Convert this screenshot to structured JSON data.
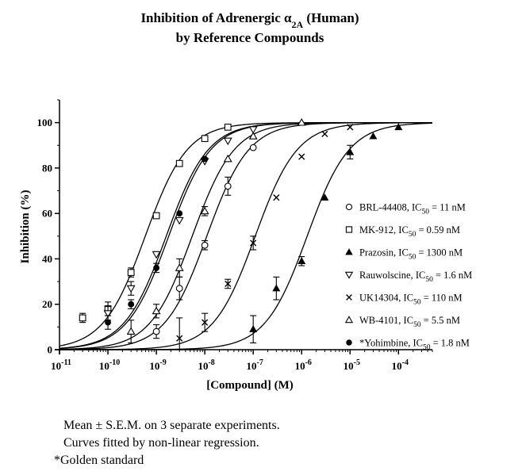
{
  "chart_data": {
    "type": "scatter",
    "title": "Inhibition of Adrenergic α2A (Human)",
    "subtitle": "by Reference Compounds",
    "xlabel": "[Compound] (M)",
    "ylabel": "Inhibition (%)",
    "xscale": "log",
    "xlim": [
      1e-11,
      0.0005
    ],
    "ylim": [
      0,
      110
    ],
    "grid": false,
    "legend_position": "right",
    "x_ticks": [
      "10-11",
      "10-10",
      "10-9",
      "10-8",
      "10-7",
      "10-6",
      "10-5",
      "10-4"
    ],
    "y_ticks": [
      "0",
      "20",
      "40",
      "60",
      "80",
      "100"
    ],
    "series": [
      {
        "name": "BRL-44408, IC50 = 11 nM",
        "legend_prefix": "BRL-44408, IC",
        "legend_sub": "50",
        "legend_suffix": " = 11 nM",
        "marker": "circle",
        "ic50": 1.1e-08,
        "x": [
          1e-09,
          3e-09,
          1e-08,
          3e-08,
          1e-07
        ],
        "y": [
          8,
          27,
          46,
          72,
          89
        ],
        "err": [
          3,
          5,
          2,
          4,
          0
        ]
      },
      {
        "name": "MK-912, IC50 = 0.59 nM",
        "legend_prefix": "MK-912, IC",
        "legend_sub": "50",
        "legend_suffix": " = 0.59 nM",
        "marker": "square",
        "ic50": 5.9e-10,
        "x": [
          3e-11,
          1e-10,
          3e-10,
          1e-09,
          3e-09,
          1e-08,
          3e-08
        ],
        "y": [
          14,
          18,
          34,
          59,
          82,
          93,
          98
        ],
        "err": [
          2,
          3,
          2,
          0,
          0,
          0,
          0
        ]
      },
      {
        "name": "Prazosin, IC50 = 1300 nM",
        "legend_prefix": "Prazosin, IC",
        "legend_sub": "50",
        "legend_suffix": " = 1300 nM",
        "marker": "triangle-up-filled",
        "ic50": 1.3e-06,
        "x": [
          1e-07,
          3e-07,
          1e-06,
          3e-06,
          1e-05,
          3e-05,
          0.0001
        ],
        "y": [
          9,
          27,
          39,
          67,
          87,
          94,
          98
        ],
        "err": [
          6,
          5,
          2,
          0,
          3,
          0,
          0
        ]
      },
      {
        "name": "Rauwolscine, IC50 = 1.6 nM",
        "legend_prefix": "Rauwolscine, IC",
        "legend_sub": "50",
        "legend_suffix": " = 1.6 nM",
        "marker": "triangle-down",
        "ic50": 1.6e-09,
        "x": [
          1e-10,
          3e-10,
          1e-09,
          3e-09,
          1e-08,
          3e-08,
          1e-07
        ],
        "y": [
          16,
          27,
          42,
          57,
          83,
          92,
          97
        ],
        "err": [
          3,
          3,
          0,
          0,
          0,
          0,
          0
        ]
      },
      {
        "name": "UK14304, IC50 = 110 nM",
        "legend_prefix": "UK14304, IC",
        "legend_sub": "50",
        "legend_suffix": " = 110 nM",
        "marker": "x",
        "ic50": 1.1e-07,
        "x": [
          3e-09,
          1e-08,
          3e-08,
          1e-07,
          3e-07,
          1e-06,
          3e-06,
          1e-05
        ],
        "y": [
          5,
          12,
          29,
          47,
          67,
          85,
          95,
          98
        ],
        "err": [
          9,
          4,
          2,
          3,
          0,
          0,
          0,
          0
        ]
      },
      {
        "name": "WB-4101, IC50 = 5.5 nM",
        "legend_prefix": "WB-4101, IC",
        "legend_sub": "50",
        "legend_suffix": " = 5.5 nM",
        "marker": "triangle-up",
        "ic50": 5.5e-09,
        "x": [
          3e-10,
          1e-09,
          3e-09,
          1e-08,
          3e-08,
          1e-07,
          1e-06
        ],
        "y": [
          8,
          17,
          36,
          61,
          84,
          94,
          100
        ],
        "err": [
          5,
          3,
          4,
          2,
          0,
          0,
          0
        ]
      },
      {
        "name": "*Yohimbine, IC50 = 1.8 nM",
        "legend_prefix": "*Yohimbine, IC",
        "legend_sub": "50",
        "legend_suffix": " = 1.8 nM",
        "marker": "circle-filled",
        "ic50": 1.8e-09,
        "x": [
          1e-10,
          3e-10,
          1e-09,
          3e-09,
          1e-08
        ],
        "y": [
          12,
          20,
          36,
          60,
          84
        ],
        "err": [
          3,
          2,
          2,
          0,
          0
        ]
      }
    ]
  },
  "footnotes": {
    "line1": "Mean ± S.E.M. on 3 separate experiments.",
    "line2": "Curves fitted by non-linear regression.",
    "line3": "*Golden standard"
  }
}
